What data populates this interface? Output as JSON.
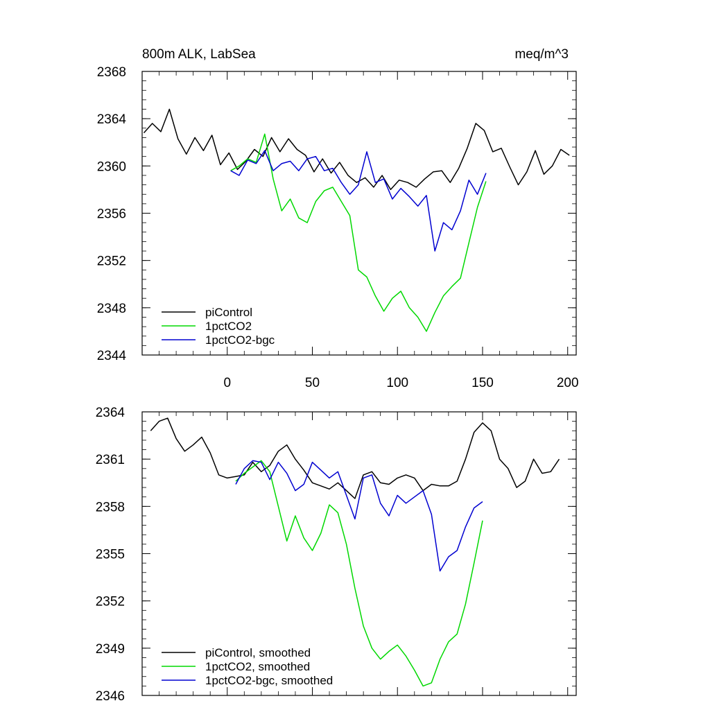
{
  "chart_data": [
    {
      "type": "line",
      "title": "800m ALK, LabSea",
      "units": "meq/m^3",
      "xlim": [
        -50,
        205
      ],
      "ylim": [
        2344,
        2368
      ],
      "xticks": [
        0,
        50,
        100,
        150,
        200
      ],
      "xticklabels": [
        "0",
        "50",
        "100",
        "150",
        "200"
      ],
      "yticks": [
        2344,
        2348,
        2352,
        2356,
        2360,
        2364,
        2368
      ],
      "yticklabels": [
        "2344",
        "2348",
        "2352",
        "2356",
        "2360",
        "2364",
        "2368"
      ],
      "legend": [
        "piControl",
        "1pctCO2",
        "1pctCO2-bgc"
      ],
      "legend_position": "bottom-left",
      "series": [
        {
          "name": "piControl",
          "color": "#000000",
          "x": [
            -49,
            -44,
            -39,
            -34,
            -29,
            -24,
            -19,
            -14,
            -9,
            -4,
            1,
            6,
            11,
            16,
            21,
            26,
            31,
            36,
            41,
            46,
            51,
            56,
            61,
            66,
            71,
            76,
            81,
            86,
            91,
            96,
            101,
            106,
            111,
            116,
            121,
            126,
            131,
            136,
            141,
            146,
            151,
            156,
            161,
            166,
            171,
            176,
            181,
            186,
            191,
            196,
            201
          ],
          "values": [
            2362.8,
            2363.6,
            2362.9,
            2364.8,
            2362.3,
            2361.0,
            2362.4,
            2361.3,
            2362.6,
            2360.1,
            2361.1,
            2359.7,
            2360.4,
            2361.4,
            2360.8,
            2362.4,
            2361.2,
            2362.3,
            2361.4,
            2360.9,
            2359.5,
            2360.6,
            2359.4,
            2360.3,
            2359.2,
            2358.6,
            2359.0,
            2358.2,
            2359.2,
            2358.0,
            2358.8,
            2358.6,
            2358.2,
            2358.9,
            2359.5,
            2359.6,
            2358.6,
            2359.8,
            2361.5,
            2363.6,
            2363.0,
            2361.2,
            2361.5,
            2359.9,
            2358.4,
            2359.5,
            2361.3,
            2359.3,
            2360.0,
            2361.4,
            2360.9
          ]
        },
        {
          "name": "1pctCO2",
          "color": "#00d800",
          "x": [
            2,
            7,
            12,
            17,
            22,
            27,
            32,
            37,
            42,
            47,
            52,
            57,
            62,
            67,
            72,
            77,
            82,
            87,
            92,
            97,
            102,
            107,
            112,
            117,
            122,
            127,
            132,
            137,
            142,
            147,
            152
          ],
          "values": [
            2359.6,
            2360.0,
            2360.6,
            2360.3,
            2362.7,
            2358.9,
            2356.2,
            2357.2,
            2355.6,
            2355.2,
            2357.0,
            2357.9,
            2358.2,
            2357.0,
            2355.8,
            2351.2,
            2350.6,
            2349.0,
            2347.7,
            2348.8,
            2349.4,
            2348.0,
            2347.2,
            2346.0,
            2347.6,
            2349.0,
            2349.8,
            2350.5,
            2353.5,
            2356.5,
            2358.7
          ]
        },
        {
          "name": "1pctCO2-bgc",
          "color": "#0000d0",
          "x": [
            2,
            7,
            12,
            17,
            22,
            27,
            32,
            37,
            42,
            47,
            52,
            57,
            62,
            67,
            72,
            77,
            82,
            87,
            92,
            97,
            102,
            107,
            112,
            117,
            122,
            127,
            132,
            137,
            142,
            147,
            152
          ],
          "values": [
            2359.6,
            2359.2,
            2360.5,
            2360.2,
            2361.3,
            2359.6,
            2360.2,
            2360.4,
            2359.6,
            2360.6,
            2360.8,
            2359.6,
            2359.8,
            2358.6,
            2357.6,
            2358.4,
            2361.2,
            2358.6,
            2358.9,
            2357.2,
            2358.1,
            2357.4,
            2356.6,
            2357.5,
            2352.8,
            2355.2,
            2354.6,
            2356.2,
            2358.8,
            2357.6,
            2359.4
          ]
        }
      ]
    },
    {
      "type": "line",
      "xlim": [
        -50,
        205
      ],
      "ylim": [
        2346,
        2364
      ],
      "xticks": [
        0,
        50,
        100,
        150,
        200
      ],
      "yticks": [
        2346,
        2349,
        2352,
        2355,
        2358,
        2361,
        2364
      ],
      "yticklabels": [
        "2346",
        "2349",
        "2352",
        "2355",
        "2358",
        "2361",
        "2364"
      ],
      "legend": [
        "piControl, smoothed",
        "1pctCO2, smoothed",
        "1pctCO2-bgc, smoothed"
      ],
      "legend_position": "bottom-left",
      "series": [
        {
          "name": "piControl, smoothed",
          "color": "#000000",
          "x": [
            -45,
            -40,
            -35,
            -30,
            -25,
            -20,
            -15,
            -10,
            -5,
            0,
            5,
            10,
            15,
            20,
            25,
            30,
            35,
            40,
            45,
            50,
            55,
            60,
            65,
            70,
            75,
            80,
            85,
            90,
            95,
            100,
            105,
            110,
            115,
            120,
            125,
            130,
            135,
            140,
            145,
            150,
            155,
            160,
            165,
            170,
            175,
            180,
            185,
            190,
            195
          ],
          "values": [
            2362.8,
            2363.4,
            2363.6,
            2362.3,
            2361.5,
            2361.9,
            2362.4,
            2361.4,
            2360.0,
            2359.8,
            2359.9,
            2360.0,
            2360.8,
            2360.2,
            2360.6,
            2361.5,
            2361.9,
            2361.0,
            2360.3,
            2359.5,
            2359.3,
            2359.1,
            2359.5,
            2359.0,
            2358.5,
            2360.0,
            2360.2,
            2359.5,
            2359.4,
            2359.8,
            2360.0,
            2359.8,
            2359.0,
            2359.4,
            2359.3,
            2359.3,
            2359.6,
            2361.0,
            2362.7,
            2363.3,
            2362.8,
            2361.0,
            2360.4,
            2359.2,
            2359.6,
            2361.0,
            2360.1,
            2360.2,
            2361.0
          ]
        },
        {
          "name": "1pctCO2, smoothed",
          "color": "#00d800",
          "x": [
            5,
            10,
            15,
            20,
            25,
            30,
            35,
            40,
            45,
            50,
            55,
            60,
            65,
            70,
            75,
            80,
            85,
            90,
            95,
            100,
            105,
            110,
            115,
            120,
            125,
            130,
            135,
            140,
            145,
            150
          ],
          "values": [
            2359.6,
            2360.1,
            2360.5,
            2360.9,
            2360.2,
            2358.0,
            2355.8,
            2357.4,
            2356.0,
            2355.2,
            2356.3,
            2358.1,
            2357.6,
            2355.6,
            2352.8,
            2350.4,
            2349.0,
            2348.3,
            2348.8,
            2349.2,
            2348.5,
            2347.6,
            2346.6,
            2346.8,
            2348.3,
            2349.4,
            2349.9,
            2351.8,
            2354.4,
            2357.1
          ]
        },
        {
          "name": "1pctCO2-bgc, smoothed",
          "color": "#0000d0",
          "x": [
            5,
            10,
            15,
            20,
            25,
            30,
            35,
            40,
            45,
            50,
            55,
            60,
            65,
            70,
            75,
            80,
            85,
            90,
            95,
            100,
            105,
            110,
            115,
            120,
            125,
            130,
            135,
            140,
            145,
            150
          ],
          "values": [
            2359.4,
            2360.4,
            2360.9,
            2360.8,
            2359.7,
            2360.8,
            2360.1,
            2359.0,
            2359.4,
            2360.8,
            2360.3,
            2359.8,
            2360.2,
            2358.7,
            2357.2,
            2359.8,
            2360.0,
            2358.2,
            2357.4,
            2358.7,
            2358.2,
            2358.6,
            2359.0,
            2357.5,
            2353.9,
            2354.8,
            2355.2,
            2356.7,
            2357.9,
            2358.3
          ]
        }
      ]
    }
  ]
}
